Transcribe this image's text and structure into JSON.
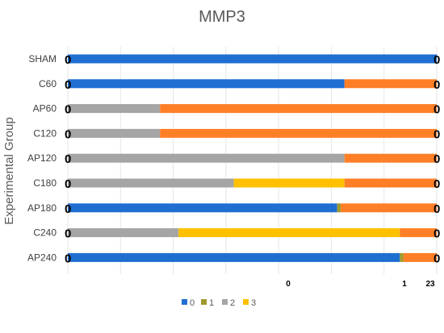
{
  "chart_data": {
    "type": "bar",
    "orientation": "horizontal",
    "stacked": true,
    "title": "MMP3",
    "ylabel": "Experimental Group",
    "xlabel": "",
    "categories": [
      "SHAM",
      "C60",
      "AP60",
      "C120",
      "AP120",
      "C180",
      "AP180",
      "C240",
      "AP240"
    ],
    "x_tick_labels": [
      "0",
      "1",
      "23"
    ],
    "xlim": [
      0,
      100
    ],
    "series": [
      {
        "name": "0",
        "color": "#1f6fd1",
        "values": [
          100,
          75,
          0,
          0,
          0,
          0,
          73,
          0,
          90
        ]
      },
      {
        "name": "1",
        "color": "#a09a2e",
        "values": [
          0,
          0,
          0,
          0,
          0,
          0,
          1,
          0,
          1
        ]
      },
      {
        "name": "2",
        "color": "#a5a5a5",
        "values": [
          0,
          0,
          25,
          25,
          75,
          45,
          0,
          30,
          0
        ]
      },
      {
        "name": "3",
        "color": "#ffc000",
        "values": [
          0,
          0,
          0,
          0,
          0,
          30,
          0,
          60,
          0
        ]
      },
      {
        "name": "",
        "color": "#ff7f27",
        "values": [
          0,
          25,
          75,
          75,
          25,
          25,
          26,
          10,
          9
        ]
      }
    ],
    "zero_marker": "0",
    "legend": {
      "position": "bottom",
      "entries": [
        "0",
        "1",
        "2",
        "3"
      ]
    },
    "grid": true
  }
}
